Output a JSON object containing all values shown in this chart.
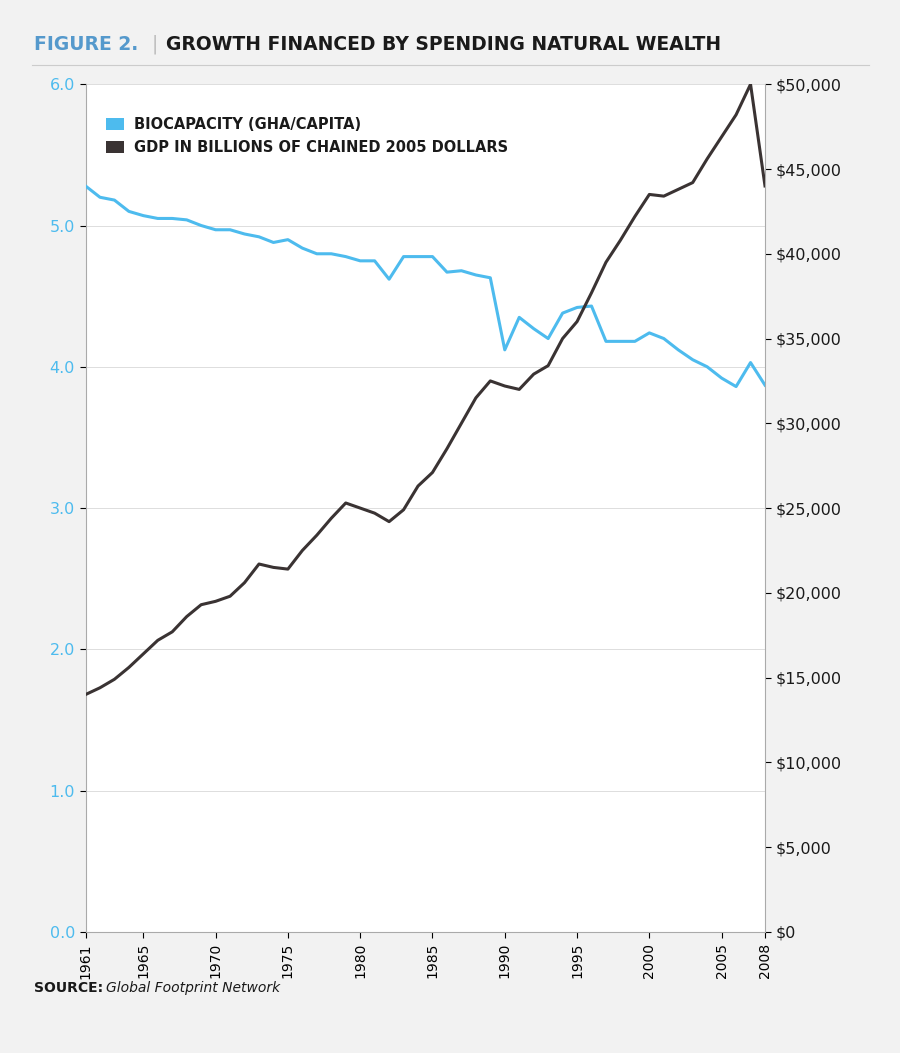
{
  "title_figure": "FIGURE 2.",
  "title_main": "GROWTH FINANCED BY SPENDING NATURAL WEALTH",
  "source": "SOURCE:",
  "source_italic": "Global Footprint Network",
  "legend_bio": "BIOCAPACITY (GHA/CAPITA)",
  "legend_gdp": "GDP IN BILLIONS OF CHAINED 2005 DOLLARS",
  "bio_color": "#4DBBEE",
  "gdp_color": "#3A3333",
  "background_color": "#F2F2F2",
  "plot_background": "#FFFFFF",
  "title_fig_color": "#5599CC",
  "title_main_color": "#1A1A1A",
  "years": [
    1961,
    1962,
    1963,
    1964,
    1965,
    1966,
    1967,
    1968,
    1969,
    1970,
    1971,
    1972,
    1973,
    1974,
    1975,
    1976,
    1977,
    1978,
    1979,
    1980,
    1981,
    1982,
    1983,
    1984,
    1985,
    1986,
    1987,
    1988,
    1989,
    1990,
    1991,
    1992,
    1993,
    1994,
    1995,
    1996,
    1997,
    1998,
    1999,
    2000,
    2001,
    2002,
    2003,
    2004,
    2005,
    2006,
    2007,
    2008
  ],
  "biocapacity": [
    5.28,
    5.2,
    5.18,
    5.1,
    5.07,
    5.05,
    5.05,
    5.04,
    5.0,
    4.97,
    4.97,
    4.94,
    4.92,
    4.88,
    4.9,
    4.84,
    4.8,
    4.8,
    4.78,
    4.75,
    4.75,
    4.62,
    4.78,
    4.78,
    4.78,
    4.67,
    4.68,
    4.65,
    4.63,
    4.12,
    4.35,
    4.27,
    4.2,
    4.38,
    4.42,
    4.43,
    4.18,
    4.18,
    4.18,
    4.24,
    4.2,
    4.12,
    4.05,
    4.0,
    3.92,
    3.86,
    4.03,
    3.87
  ],
  "gdp": [
    14000,
    14400,
    14900,
    15600,
    16400,
    17200,
    17700,
    18600,
    19300,
    19500,
    19800,
    20600,
    21700,
    21500,
    21400,
    22500,
    23400,
    24400,
    25300,
    25000,
    24700,
    24200,
    24900,
    26300,
    27100,
    28500,
    30000,
    31500,
    32500,
    32200,
    32000,
    32900,
    33400,
    35000,
    36000,
    37700,
    39500,
    40800,
    42200,
    43500,
    43400,
    43800,
    44200,
    45600,
    46900,
    48200,
    50000,
    44000
  ],
  "ylim_left": [
    0.0,
    6.0
  ],
  "ylim_right": [
    0,
    50000
  ],
  "yticks_left": [
    0.0,
    1.0,
    2.0,
    3.0,
    4.0,
    5.0,
    6.0
  ],
  "yticks_right": [
    0,
    5000,
    10000,
    15000,
    20000,
    25000,
    30000,
    35000,
    40000,
    45000,
    50000
  ],
  "xticks": [
    1961,
    1965,
    1970,
    1975,
    1980,
    1985,
    1990,
    1995,
    2000,
    2005,
    2008
  ]
}
